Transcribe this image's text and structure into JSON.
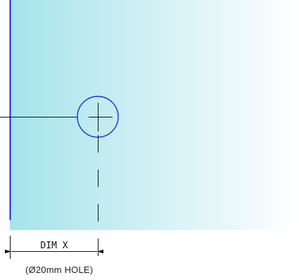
{
  "colors": {
    "panel_start": "#a5e3eb",
    "panel_end": "#ffffff",
    "edge_line": "#1b2de0",
    "hole_outline": "#1b2de0",
    "ink": "#111111"
  },
  "dimension": {
    "label": "DIM X"
  },
  "hole": {
    "note": "(Ø20mm HOLE)"
  }
}
